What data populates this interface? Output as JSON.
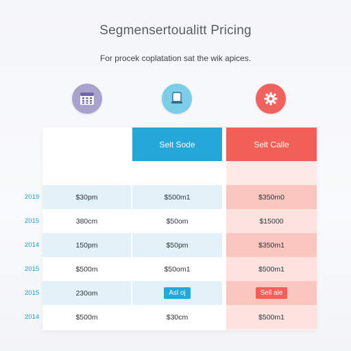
{
  "header": {
    "title": "Segmensertoualitt Pricing",
    "subtitle": "For procek coplatation sat the wik apices."
  },
  "icons": {
    "left": "calculator-icon",
    "middle": "laptop-icon",
    "right": "gear-icon"
  },
  "colors": {
    "blue": "#25a7d8",
    "red": "#f25f57",
    "purple": "#a9a2cc",
    "light_blue": "#7ccde8"
  },
  "columns": {
    "middle_header": "Selt Sode",
    "right_header": "Selt Calle"
  },
  "rows": [
    {
      "year": "2019",
      "col1": "$30pm",
      "col2": "$500m1",
      "col3": "$350m0"
    },
    {
      "year": "2015",
      "col1": "380cm",
      "col2": "$50om",
      "col3": "$15000"
    },
    {
      "year": "2014",
      "col1": "150pm",
      "col2": "$50pm",
      "col3": "$350m1"
    },
    {
      "year": "2015",
      "col1": "$500m",
      "col2": "$50om1",
      "col3": "$500m1"
    },
    {
      "year": "2015",
      "col1": "230om",
      "col2": "Asl oj",
      "col3": "Sell ale"
    },
    {
      "year": "2014",
      "col1": "$500m",
      "col2": "$30cm",
      "col3": "$500m1"
    }
  ]
}
